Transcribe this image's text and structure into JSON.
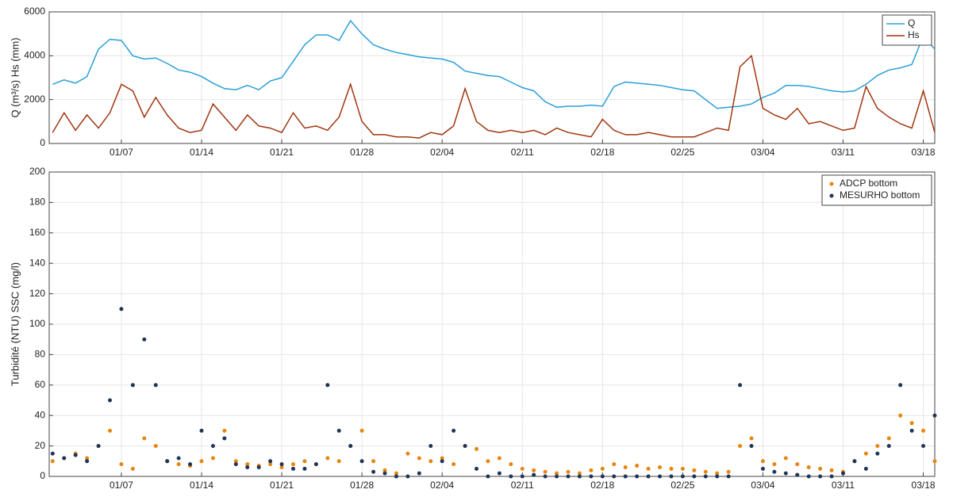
{
  "chart_data": [
    {
      "type": "line",
      "y_label": "Q (m³/s) Hs (mm)",
      "x": [
        "01/01",
        "01/02",
        "01/03",
        "01/04",
        "01/05",
        "01/06",
        "01/07",
        "01/08",
        "01/09",
        "01/10",
        "01/11",
        "01/12",
        "01/13",
        "01/14",
        "01/15",
        "01/16",
        "01/17",
        "01/18",
        "01/19",
        "01/20",
        "01/21",
        "01/22",
        "01/23",
        "01/24",
        "01/25",
        "01/26",
        "01/27",
        "01/28",
        "01/29",
        "01/30",
        "01/31",
        "02/01",
        "02/02",
        "02/03",
        "02/04",
        "02/05",
        "02/06",
        "02/07",
        "02/08",
        "02/09",
        "02/10",
        "02/11",
        "02/12",
        "02/13",
        "02/14",
        "02/15",
        "02/16",
        "02/17",
        "02/18",
        "02/19",
        "02/20",
        "02/21",
        "02/22",
        "02/23",
        "02/24",
        "02/25",
        "02/26",
        "02/27",
        "02/28",
        "03/01",
        "03/02",
        "03/03",
        "03/04",
        "03/05",
        "03/06",
        "03/07",
        "03/08",
        "03/09",
        "03/10",
        "03/11",
        "03/12",
        "03/13",
        "03/14",
        "03/15",
        "03/16",
        "03/17",
        "03/18",
        "03/19"
      ],
      "xticks": [
        "01/07",
        "01/14",
        "01/21",
        "01/28",
        "02/04",
        "02/11",
        "02/18",
        "02/25",
        "03/04",
        "03/11",
        "03/18"
      ],
      "ylim": [
        0,
        6000
      ],
      "yticks": [
        0,
        2000,
        4000,
        6000
      ],
      "grid": true,
      "legend": "top-right",
      "series": [
        {
          "name": "Q",
          "color": "#2a9fd8",
          "values": [
            2700,
            2900,
            2750,
            3050,
            4300,
            4750,
            4700,
            4000,
            3850,
            3900,
            3650,
            3350,
            3250,
            3050,
            2750,
            2500,
            2450,
            2650,
            2450,
            2850,
            3000,
            3750,
            4500,
            4950,
            4950,
            4700,
            5600,
            5000,
            4500,
            4300,
            4150,
            4050,
            3950,
            3900,
            3850,
            3700,
            3300,
            3200,
            3100,
            3050,
            2800,
            2550,
            2400,
            1900,
            1650,
            1700,
            1700,
            1750,
            1700,
            2600,
            2800,
            2750,
            2700,
            2650,
            2550,
            2450,
            2400,
            2000,
            1600,
            1650,
            1700,
            1800,
            2100,
            2300,
            2650,
            2650,
            2600,
            2500,
            2400,
            2350,
            2400,
            2700,
            3100,
            3350,
            3450,
            3600,
            4900,
            4300
          ]
        },
        {
          "name": "Hs",
          "color": "#a0360f",
          "values": [
            500,
            1400,
            600,
            1300,
            700,
            1400,
            2700,
            2400,
            1200,
            2100,
            1300,
            700,
            500,
            600,
            1800,
            1200,
            600,
            1300,
            800,
            700,
            500,
            1400,
            700,
            800,
            600,
            1200,
            2700,
            1000,
            400,
            400,
            300,
            300,
            250,
            500,
            400,
            800,
            2500,
            1000,
            600,
            500,
            600,
            500,
            600,
            400,
            700,
            500,
            400,
            300,
            1100,
            600,
            400,
            400,
            500,
            400,
            300,
            300,
            300,
            500,
            700,
            600,
            3500,
            4000,
            1600,
            1300,
            1100,
            1600,
            900,
            1000,
            800,
            600,
            700,
            2600,
            1600,
            1200,
            900,
            700,
            2400,
            500
          ]
        }
      ]
    },
    {
      "type": "scatter",
      "y_label": "Turbidité (NTU)  SSC (mg/l)",
      "x": [
        "01/01",
        "01/02",
        "01/03",
        "01/04",
        "01/05",
        "01/06",
        "01/07",
        "01/08",
        "01/09",
        "01/10",
        "01/11",
        "01/12",
        "01/13",
        "01/14",
        "01/15",
        "01/16",
        "01/17",
        "01/18",
        "01/19",
        "01/20",
        "01/21",
        "01/22",
        "01/23",
        "01/24",
        "01/25",
        "01/26",
        "01/27",
        "01/28",
        "01/29",
        "01/30",
        "01/31",
        "02/01",
        "02/02",
        "02/03",
        "02/04",
        "02/05",
        "02/06",
        "02/07",
        "02/08",
        "02/09",
        "02/10",
        "02/11",
        "02/12",
        "02/13",
        "02/14",
        "02/15",
        "02/16",
        "02/17",
        "02/18",
        "02/19",
        "02/20",
        "02/21",
        "02/22",
        "02/23",
        "02/24",
        "02/25",
        "02/26",
        "02/27",
        "02/28",
        "03/01",
        "03/02",
        "03/03",
        "03/04",
        "03/05",
        "03/06",
        "03/07",
        "03/08",
        "03/09",
        "03/10",
        "03/11",
        "03/12",
        "03/13",
        "03/14",
        "03/15",
        "03/16",
        "03/17",
        "03/18",
        "03/19"
      ],
      "xticks": [
        "01/07",
        "01/14",
        "01/21",
        "01/28",
        "02/04",
        "02/11",
        "02/18",
        "02/25",
        "03/04",
        "03/11",
        "03/18"
      ],
      "ylim": [
        0,
        200
      ],
      "yticks": [
        0,
        20,
        40,
        60,
        80,
        100,
        120,
        140,
        160,
        180,
        200
      ],
      "grid": true,
      "legend": "top-right",
      "series": [
        {
          "name": "ADCP bottom",
          "color": "#e8850c",
          "values": [
            10,
            12,
            15,
            12,
            20,
            30,
            8,
            5,
            25,
            20,
            10,
            8,
            7,
            10,
            12,
            30,
            10,
            8,
            7,
            8,
            6,
            8,
            10,
            8,
            12,
            10,
            20,
            30,
            10,
            4,
            2,
            15,
            12,
            10,
            12,
            8,
            20,
            18,
            10,
            12,
            8,
            5,
            4,
            3,
            2,
            3,
            2,
            4,
            5,
            8,
            6,
            7,
            5,
            6,
            5,
            5,
            4,
            3,
            2,
            3,
            20,
            25,
            10,
            8,
            12,
            8,
            6,
            5,
            4,
            3,
            10,
            15,
            20,
            25,
            40,
            35,
            30,
            10
          ]
        },
        {
          "name": "MESURHO bottom",
          "color": "#1f3557",
          "values": [
            15,
            12,
            14,
            10,
            20,
            50,
            110,
            60,
            90,
            60,
            10,
            12,
            8,
            30,
            20,
            25,
            8,
            6,
            6,
            10,
            8,
            5,
            5,
            8,
            60,
            30,
            20,
            10,
            3,
            2,
            0,
            0,
            2,
            20,
            10,
            30,
            20,
            5,
            0,
            2,
            0,
            0,
            1,
            0,
            0,
            0,
            0,
            0,
            0,
            0,
            0,
            0,
            0,
            0,
            0,
            0,
            0,
            0,
            0,
            0,
            60,
            20,
            5,
            3,
            2,
            1,
            0,
            0,
            0,
            2,
            10,
            5,
            15,
            20,
            60,
            30,
            20,
            40
          ]
        }
      ]
    }
  ]
}
